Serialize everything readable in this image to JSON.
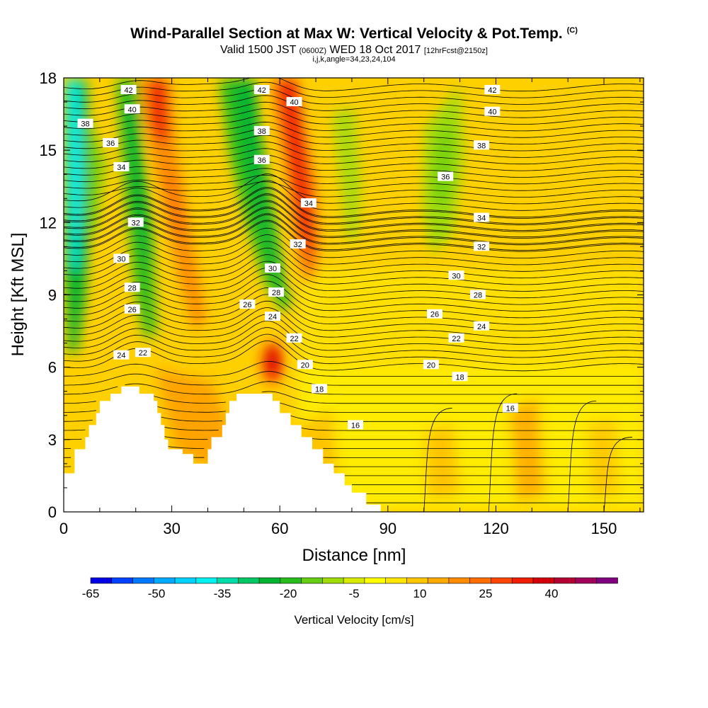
{
  "title": {
    "main": "Wind-Parallel Section at Max W: Vertical Velocity & Pot.Temp.",
    "main_suffix": "(C)",
    "valid_a": "Valid 1500 JST",
    "valid_zulu": "(0600Z)",
    "valid_b": "WED 18 Oct 2017",
    "forecast": "[12hrFcst@2150z]",
    "section": "i,j,k,angle=34,23,24,104"
  },
  "chart_data": {
    "type": "heatmap",
    "xlabel": "Distance [nm]",
    "ylabel": "Height [Kft MSL]",
    "xlim": [
      0,
      161
    ],
    "ylim": [
      0,
      18
    ],
    "x_ticks": [
      0,
      30,
      60,
      90,
      120,
      150
    ],
    "y_ticks": [
      0,
      3,
      6,
      9,
      12,
      15,
      18
    ],
    "colorbar": {
      "label": "Vertical Velocity [cm/s]",
      "tick_labels": [
        "-65",
        "-50",
        "-35",
        "-20",
        "-5",
        "10",
        "25",
        "40"
      ],
      "tick_values": [
        -65,
        -50,
        -35,
        -20,
        -5,
        10,
        25,
        40
      ],
      "min": -65,
      "max": 55,
      "step": 5,
      "colors": [
        "#0000e6",
        "#0040ff",
        "#0078ff",
        "#00aaff",
        "#00d2ff",
        "#00f0f0",
        "#00dcaa",
        "#00c864",
        "#00b432",
        "#28be1e",
        "#64cd14",
        "#a0dc0a",
        "#d8ea00",
        "#ffff00",
        "#ffe600",
        "#ffc800",
        "#ffaa00",
        "#ff8c00",
        "#ff6e00",
        "#ff4600",
        "#f01e00",
        "#d2000a",
        "#b40032",
        "#a0005a",
        "#800080"
      ]
    },
    "terrain": [
      [
        0,
        1.6
      ],
      [
        3,
        1.6
      ],
      [
        3,
        2.6
      ],
      [
        6,
        2.6
      ],
      [
        6,
        3.1
      ],
      [
        7,
        3.1
      ],
      [
        7,
        3.6
      ],
      [
        9,
        3.6
      ],
      [
        9,
        4.1
      ],
      [
        10,
        4.1
      ],
      [
        10,
        4.6
      ],
      [
        13,
        4.6
      ],
      [
        13,
        4.9
      ],
      [
        16,
        4.9
      ],
      [
        16,
        5.2
      ],
      [
        21,
        5.2
      ],
      [
        21,
        4.9
      ],
      [
        25,
        4.9
      ],
      [
        25,
        4.6
      ],
      [
        26,
        4.6
      ],
      [
        26,
        4.1
      ],
      [
        27,
        4.1
      ],
      [
        27,
        3.6
      ],
      [
        28,
        3.6
      ],
      [
        28,
        3.0
      ],
      [
        29,
        3.0
      ],
      [
        29,
        2.6
      ],
      [
        33,
        2.6
      ],
      [
        33,
        2.4
      ],
      [
        36,
        2.4
      ],
      [
        36,
        2.0
      ],
      [
        40,
        2.0
      ],
      [
        40,
        2.6
      ],
      [
        41,
        2.6
      ],
      [
        41,
        3.1
      ],
      [
        44,
        3.1
      ],
      [
        44,
        3.6
      ],
      [
        45,
        3.6
      ],
      [
        45,
        4.1
      ],
      [
        46,
        4.1
      ],
      [
        46,
        4.6
      ],
      [
        48,
        4.6
      ],
      [
        48,
        4.9
      ],
      [
        52,
        4.9
      ],
      [
        52,
        4.9
      ],
      [
        58,
        4.9
      ],
      [
        58,
        4.6
      ],
      [
        60,
        4.6
      ],
      [
        60,
        4.1
      ],
      [
        63,
        4.1
      ],
      [
        63,
        3.6
      ],
      [
        66,
        3.6
      ],
      [
        66,
        3.1
      ],
      [
        69,
        3.1
      ],
      [
        69,
        2.6
      ],
      [
        72,
        2.6
      ],
      [
        72,
        2.0
      ],
      [
        75,
        2.0
      ],
      [
        75,
        1.6
      ],
      [
        78,
        1.6
      ],
      [
        78,
        1.1
      ],
      [
        80,
        1.1
      ],
      [
        80,
        0.8
      ],
      [
        84,
        0.8
      ],
      [
        84,
        0.3
      ],
      [
        88,
        0.3
      ],
      [
        88,
        0
      ],
      [
        161,
        0
      ]
    ],
    "isentropes": [
      {
        "value": 16,
        "label": "16",
        "label_x": 81,
        "label_y": 3.6
      },
      {
        "value": 16,
        "label": "16",
        "label_x": 124,
        "label_y": 4.3
      },
      {
        "value": 18,
        "label": "18",
        "label_x": 71,
        "label_y": 5.1
      },
      {
        "value": 18,
        "label": "18",
        "label_x": 110,
        "label_y": 5.6
      },
      {
        "value": 20,
        "label": "20",
        "label_x": 67,
        "label_y": 6.1
      },
      {
        "value": 20,
        "label": "20",
        "label_x": 102,
        "label_y": 6.1
      },
      {
        "value": 22,
        "label": "22",
        "label_x": 22,
        "label_y": 6.6
      },
      {
        "value": 22,
        "label": "22",
        "label_x": 64,
        "label_y": 7.2
      },
      {
        "value": 22,
        "label": "22",
        "label_x": 109,
        "label_y": 7.2
      },
      {
        "value": 24,
        "label": "24",
        "label_x": 16,
        "label_y": 6.5
      },
      {
        "value": 24,
        "label": "24",
        "label_x": 58,
        "label_y": 8.1
      },
      {
        "value": 24,
        "label": "24",
        "label_x": 116,
        "label_y": 7.7
      },
      {
        "value": 26,
        "label": "26",
        "label_x": 19,
        "label_y": 8.4
      },
      {
        "value": 26,
        "label": "26",
        "label_x": 51,
        "label_y": 8.6
      },
      {
        "value": 26,
        "label": "26",
        "label_x": 103,
        "label_y": 8.2
      },
      {
        "value": 28,
        "label": "28",
        "label_x": 19,
        "label_y": 9.3
      },
      {
        "value": 28,
        "label": "28",
        "label_x": 59,
        "label_y": 9.1
      },
      {
        "value": 28,
        "label": "28",
        "label_x": 115,
        "label_y": 9.0
      },
      {
        "value": 30,
        "label": "30",
        "label_x": 16,
        "label_y": 10.5
      },
      {
        "value": 30,
        "label": "30",
        "label_x": 58,
        "label_y": 10.1
      },
      {
        "value": 30,
        "label": "30",
        "label_x": 109,
        "label_y": 9.8
      },
      {
        "value": 32,
        "label": "32",
        "label_x": 20,
        "label_y": 12.0
      },
      {
        "value": 32,
        "label": "32",
        "label_x": 65,
        "label_y": 11.1
      },
      {
        "value": 32,
        "label": "32",
        "label_x": 116,
        "label_y": 11.0
      },
      {
        "value": 34,
        "label": "34",
        "label_x": 16,
        "label_y": 14.3
      },
      {
        "value": 34,
        "label": "34",
        "label_x": 68,
        "label_y": 12.8
      },
      {
        "value": 34,
        "label": "34",
        "label_x": 116,
        "label_y": 12.2
      },
      {
        "value": 36,
        "label": "36",
        "label_x": 13,
        "label_y": 15.3
      },
      {
        "value": 36,
        "label": "36",
        "label_x": 55,
        "label_y": 14.6
      },
      {
        "value": 36,
        "label": "36",
        "label_x": 106,
        "label_y": 13.9
      },
      {
        "value": 38,
        "label": "38",
        "label_x": 6,
        "label_y": 16.1
      },
      {
        "value": 38,
        "label": "38",
        "label_x": 55,
        "label_y": 15.8
      },
      {
        "value": 38,
        "label": "38",
        "label_x": 116,
        "label_y": 15.2
      },
      {
        "value": 40,
        "label": "40",
        "label_x": 19,
        "label_y": 16.7
      },
      {
        "value": 40,
        "label": "40",
        "label_x": 64,
        "label_y": 17.0
      },
      {
        "value": 40,
        "label": "40",
        "label_x": 119,
        "label_y": 16.6
      },
      {
        "value": 42,
        "label": "42",
        "label_x": 18,
        "label_y": 17.5
      },
      {
        "value": 42,
        "label": "42",
        "label_x": 55,
        "label_y": 17.5
      },
      {
        "value": 42,
        "label": "42",
        "label_x": 119,
        "label_y": 17.5
      }
    ]
  }
}
